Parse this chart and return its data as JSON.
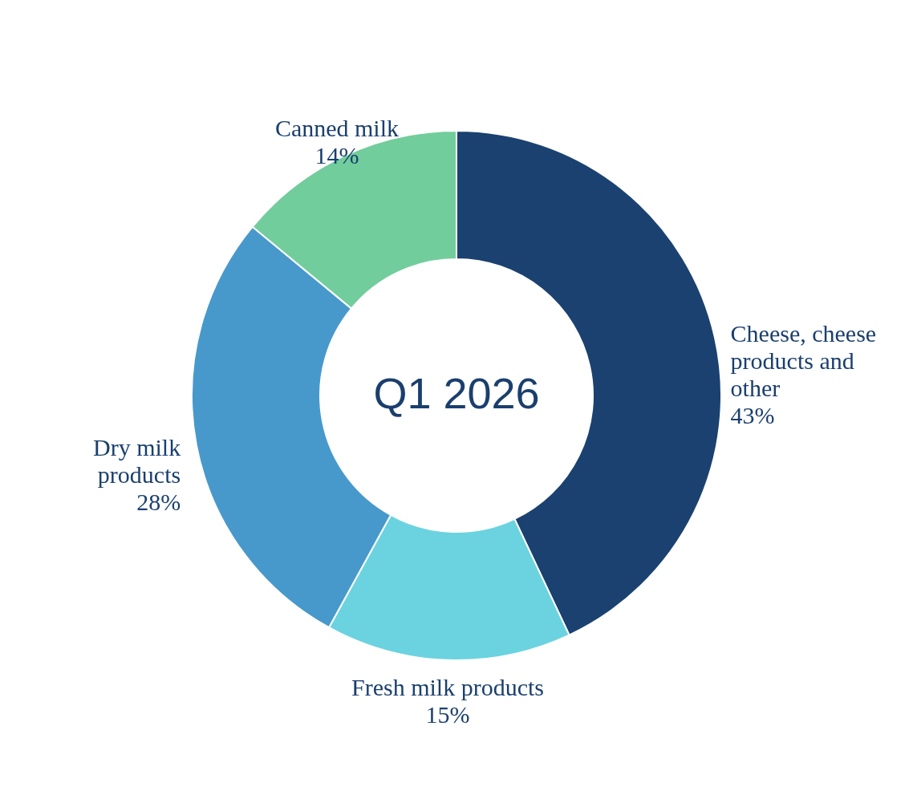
{
  "chart_data": {
    "type": "donut",
    "title": "Q1 2026",
    "categories": [
      "Cheese, cheese products and other",
      "Fresh milk products",
      "Dry milk products",
      "Canned milk"
    ],
    "values": [
      43,
      15,
      28,
      14
    ],
    "colors": [
      "#1a4170",
      "#6bd3e0",
      "#4899cb",
      "#72cd9c"
    ],
    "value_labels": [
      "43%",
      "15%",
      "28%",
      "14%"
    ]
  }
}
